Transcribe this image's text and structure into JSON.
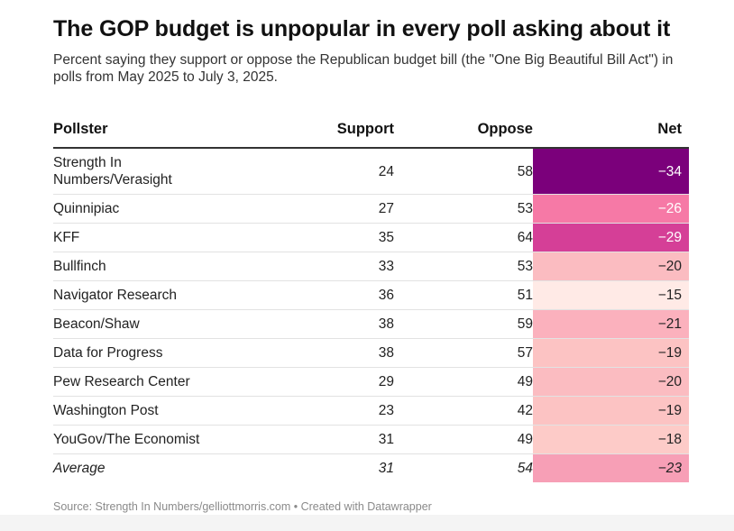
{
  "title": "The GOP budget is unpopular in every poll asking about it",
  "subtitle": "Percent saying they support or oppose the Republican budget bill (the \"One Big Beautiful Bill Act\") in polls from May 2025 to July 3, 2025.",
  "source": "Source: Strength In Numbers/gelliottmorris.com • Created with Datawrapper",
  "chart_data": {
    "type": "table",
    "columns": [
      "Pollster",
      "Support",
      "Oppose",
      "Net"
    ],
    "rows": [
      {
        "pollster": "Strength In Numbers/Verasight",
        "support": 24,
        "oppose": 58,
        "net": "−34",
        "net_value": -34,
        "color": "#7b007b",
        "text_color": "#ffffff"
      },
      {
        "pollster": "Quinnipiac",
        "support": 27,
        "oppose": 53,
        "net": "−26",
        "net_value": -26,
        "color": "#f679a6",
        "text_color": "#ffffff"
      },
      {
        "pollster": "KFF",
        "support": 35,
        "oppose": 64,
        "net": "−29",
        "net_value": -29,
        "color": "#d53f97",
        "text_color": "#ffffff"
      },
      {
        "pollster": "Bullfinch",
        "support": 33,
        "oppose": 53,
        "net": "−20",
        "net_value": -20,
        "color": "#fbbcc1",
        "text_color": "#222222"
      },
      {
        "pollster": "Navigator Research",
        "support": 36,
        "oppose": 51,
        "net": "−15",
        "net_value": -15,
        "color": "#ffeae6",
        "text_color": "#222222"
      },
      {
        "pollster": "Beacon/Shaw",
        "support": 38,
        "oppose": 59,
        "net": "−21",
        "net_value": -21,
        "color": "#fbb1bd",
        "text_color": "#222222"
      },
      {
        "pollster": "Data for Progress",
        "support": 38,
        "oppose": 57,
        "net": "−19",
        "net_value": -19,
        "color": "#fcc3c3",
        "text_color": "#222222"
      },
      {
        "pollster": "Pew Research Center",
        "support": 29,
        "oppose": 49,
        "net": "−20",
        "net_value": -20,
        "color": "#fbbcc1",
        "text_color": "#222222"
      },
      {
        "pollster": "Washington Post",
        "support": 23,
        "oppose": 42,
        "net": "−19",
        "net_value": -19,
        "color": "#fcc3c3",
        "text_color": "#222222"
      },
      {
        "pollster": "YouGov/The Economist",
        "support": 31,
        "oppose": 49,
        "net": "−18",
        "net_value": -18,
        "color": "#fdcbc8",
        "text_color": "#222222"
      }
    ],
    "average": {
      "pollster": "Average",
      "support": 31,
      "oppose": 54,
      "net": "−23",
      "net_value": -23,
      "color": "#f79fb6",
      "text_color": "#222222"
    }
  }
}
